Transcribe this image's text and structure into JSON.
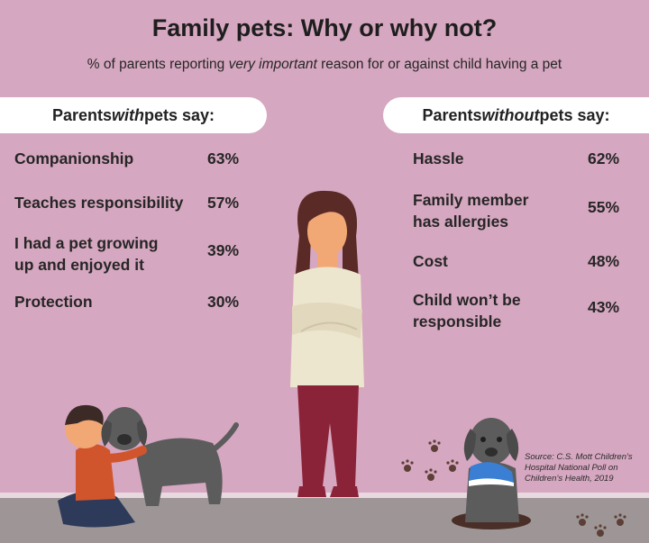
{
  "title": "Family pets: Why or why not?",
  "subtitle": {
    "before": "% of parents reporting ",
    "emphasis": "very important",
    "after": " reason for or against child having a pet"
  },
  "left_header": {
    "before": "Parents ",
    "emphasis": "with",
    "after": " pets say:"
  },
  "right_header": {
    "before": "Parents ",
    "emphasis": "without",
    "after": " pets say:"
  },
  "with_pets": [
    {
      "reason": "Companionship",
      "percent": "63%"
    },
    {
      "reason": "Teaches responsibility",
      "percent": "57%"
    },
    {
      "reason_line1": "I had a pet growing",
      "reason_line2": "up and enjoyed it",
      "percent": "39%"
    },
    {
      "reason": "Protection",
      "percent": "30%"
    }
  ],
  "without_pets": [
    {
      "reason": "Hassle",
      "percent": "62%"
    },
    {
      "reason_line1": "Family member",
      "reason_line2": "has allergies",
      "percent": "55%"
    },
    {
      "reason": "Cost",
      "percent": "48%"
    },
    {
      "reason_line1": "Child won’t be",
      "reason_line2": "responsible",
      "percent": "43%"
    }
  ],
  "source": {
    "line1": "Source: C.S. Mott Children’s",
    "line2": "Hospital National Poll on",
    "line3": "Children’s Health, 2019"
  },
  "colors": {
    "background": "#d6a7c0",
    "text": "#262626",
    "pill": "#ffffff"
  }
}
